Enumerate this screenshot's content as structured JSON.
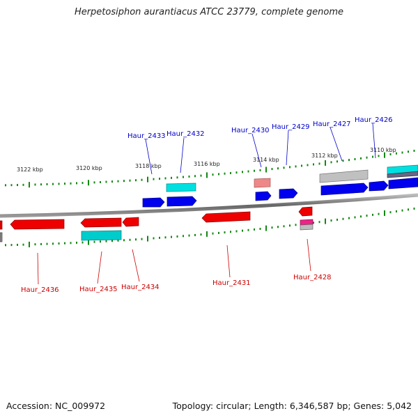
{
  "header": {
    "title": "Herpetosiphon aurantiacus ATCC 23779, complete genome"
  },
  "footer": {
    "accession": "Accession: NC_009972",
    "topology": "Topology: circular; Length: 6,346,587 bp; Genes: 5,042"
  },
  "scale": {
    "ticks": [
      "3122 kbp",
      "3120 kbp",
      "3118 kbp",
      "3116 kbp",
      "3114 kbp",
      "3112 kbp",
      "3110 kbp"
    ]
  },
  "genes_top": [
    {
      "id": "Haur_2433",
      "color": "#0000cc"
    },
    {
      "id": "Haur_2432",
      "color": "#0000cc"
    },
    {
      "id": "Haur_2430",
      "color": "#0000cc"
    },
    {
      "id": "Haur_2429",
      "color": "#0000cc"
    },
    {
      "id": "Haur_2427",
      "color": "#0000cc"
    },
    {
      "id": "Haur_2426",
      "color": "#0000cc"
    }
  ],
  "genes_bottom": [
    {
      "id": "Haur_2436",
      "color": "#cc0000"
    },
    {
      "id": "Haur_2435",
      "color": "#cc0000"
    },
    {
      "id": "Haur_2434",
      "color": "#cc0000"
    },
    {
      "id": "Haur_2431",
      "color": "#cc0000"
    },
    {
      "id": "Haur_2428",
      "color": "#cc0000"
    }
  ],
  "colors": {
    "forward_cds": "#0000ee",
    "reverse_cds": "#ee0000",
    "rna": "#00dddd",
    "pseudo": "#aaaaaa",
    "tick": "#118811",
    "backbone": "#777777"
  }
}
